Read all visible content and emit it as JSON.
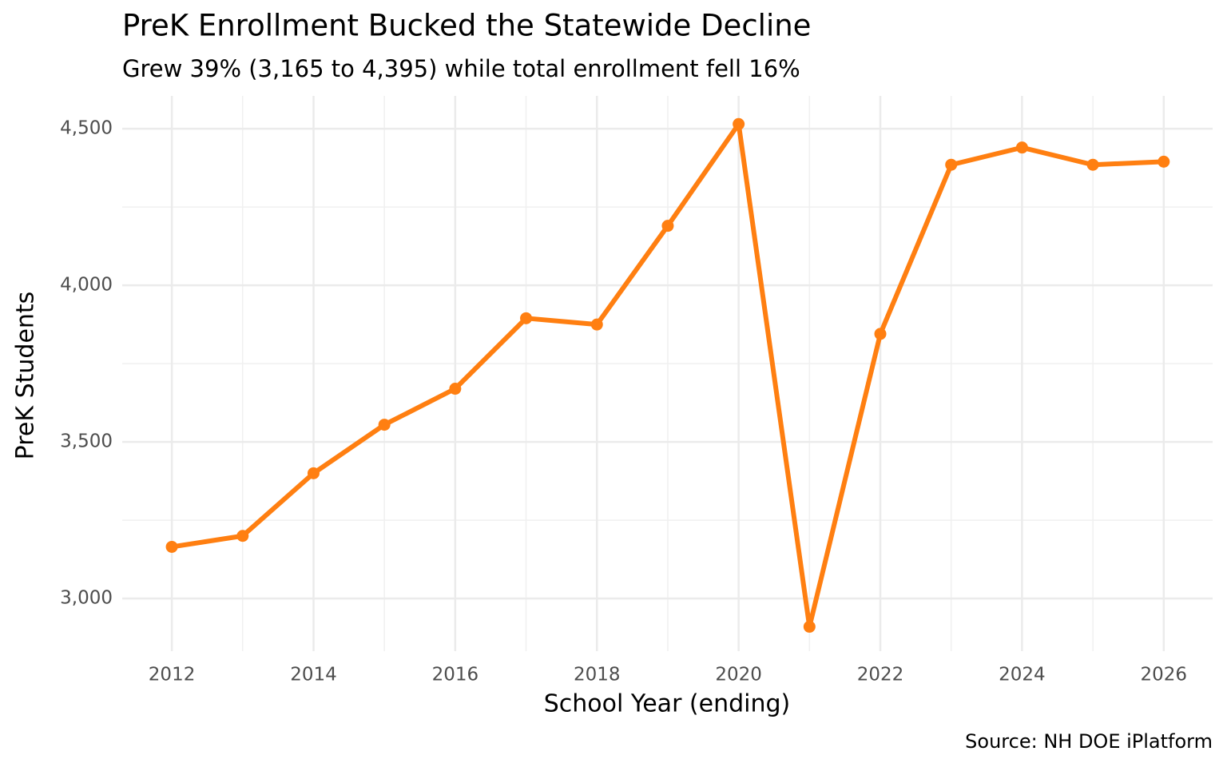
{
  "chart_data": {
    "type": "line",
    "title": "PreK Enrollment Bucked the Statewide Decline",
    "subtitle": "Grew 39% (3,165 to 4,395) while total enrollment fell 16%",
    "x_label": "School Year (ending)",
    "y_label": "PreK Students",
    "caption": "Source: NH DOE iPlatform",
    "x": [
      2012,
      2013,
      2014,
      2015,
      2016,
      2017,
      2018,
      2019,
      2020,
      2021,
      2022,
      2023,
      2024,
      2025,
      2026
    ],
    "series": [
      {
        "name": "PreK Students",
        "color": "#ff7f11",
        "values": [
          3165,
          3200,
          3400,
          3555,
          3670,
          3895,
          3875,
          4190,
          4515,
          2910,
          3845,
          4385,
          4440,
          4385,
          4395
        ]
      }
    ],
    "xlim": [
      2011.3,
      2026.69
    ],
    "ylim": [
      2832,
      4605
    ],
    "xticks": [
      2012,
      2014,
      2016,
      2018,
      2020,
      2022,
      2024,
      2026
    ],
    "minor_xticks": [
      2013,
      2015,
      2017,
      2019,
      2021,
      2023,
      2025
    ],
    "yticks": [
      {
        "value": 3000,
        "label": "3,000"
      },
      {
        "value": 3500,
        "label": "3,500"
      },
      {
        "value": 4000,
        "label": "4,000"
      },
      {
        "value": 4500,
        "label": "4,500"
      }
    ],
    "minor_yticks": [
      3250,
      3750,
      4250
    ],
    "grid": true,
    "legend": false
  }
}
